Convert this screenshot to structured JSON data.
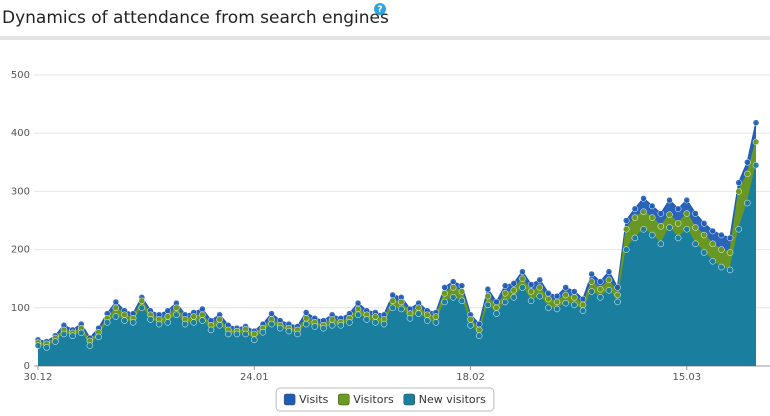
{
  "help_icon": "?",
  "chart_data": {
    "type": "area",
    "title": "Dynamics of attendance from search engines",
    "categories": [
      "30.12",
      null,
      null,
      null,
      null,
      null,
      null,
      null,
      null,
      null,
      null,
      null,
      null,
      null,
      null,
      null,
      null,
      null,
      null,
      null,
      null,
      null,
      null,
      null,
      null,
      "24.01",
      null,
      null,
      null,
      null,
      null,
      null,
      null,
      null,
      null,
      null,
      null,
      null,
      null,
      null,
      null,
      null,
      null,
      null,
      null,
      null,
      null,
      null,
      null,
      null,
      "18.02",
      null,
      null,
      null,
      null,
      null,
      null,
      null,
      null,
      null,
      null,
      null,
      null,
      null,
      null,
      null,
      null,
      null,
      null,
      null,
      null,
      null,
      null,
      null,
      null,
      "15.03",
      null,
      null,
      null,
      null,
      null,
      null,
      null,
      null
    ],
    "series": [
      {
        "name": "Visits",
        "color": "#1f5cb5",
        "values": [
          45,
          42,
          52,
          70,
          62,
          72,
          48,
          65,
          90,
          110,
          95,
          90,
          118,
          95,
          88,
          95,
          108,
          88,
          92,
          98,
          78,
          88,
          70,
          65,
          68,
          60,
          72,
          90,
          78,
          72,
          68,
          92,
          82,
          78,
          88,
          82,
          90,
          108,
          95,
          92,
          88,
          122,
          118,
          98,
          108,
          95,
          92,
          135,
          145,
          138,
          88,
          72,
          132,
          110,
          138,
          142,
          162,
          140,
          148,
          125,
          120,
          135,
          128,
          115,
          158,
          145,
          162,
          135,
          250,
          270,
          288,
          275,
          262,
          285,
          270,
          285,
          262,
          245,
          232,
          225,
          220,
          315,
          350,
          418
        ]
      },
      {
        "name": "Visitors",
        "color": "#6b9a1c",
        "values": [
          40,
          38,
          48,
          62,
          57,
          65,
          43,
          58,
          82,
          100,
          88,
          82,
          112,
          88,
          80,
          85,
          100,
          80,
          85,
          88,
          70,
          80,
          62,
          60,
          63,
          55,
          65,
          80,
          70,
          65,
          62,
          82,
          75,
          70,
          80,
          75,
          82,
          98,
          88,
          85,
          80,
          112,
          110,
          90,
          100,
          88,
          85,
          125,
          135,
          128,
          80,
          62,
          120,
          100,
          125,
          130,
          150,
          128,
          135,
          115,
          110,
          122,
          118,
          105,
          145,
          132,
          148,
          122,
          235,
          255,
          265,
          255,
          240,
          260,
          245,
          262,
          238,
          225,
          210,
          200,
          195,
          300,
          330,
          385
        ]
      },
      {
        "name": "New visitors",
        "color": "#1a7e9e",
        "values": [
          35,
          32,
          42,
          55,
          52,
          57,
          35,
          50,
          75,
          85,
          78,
          75,
          100,
          80,
          72,
          75,
          88,
          72,
          75,
          78,
          62,
          70,
          55,
          55,
          55,
          45,
          58,
          72,
          65,
          60,
          55,
          72,
          68,
          65,
          70,
          70,
          75,
          88,
          80,
          75,
          72,
          100,
          98,
          82,
          90,
          78,
          75,
          110,
          118,
          112,
          70,
          52,
          105,
          90,
          110,
          118,
          135,
          112,
          120,
          100,
          98,
          108,
          105,
          95,
          128,
          118,
          130,
          110,
          200,
          220,
          235,
          225,
          210,
          238,
          220,
          235,
          210,
          195,
          180,
          170,
          165,
          235,
          280,
          345
        ]
      }
    ],
    "ylim": [
      0,
      500
    ],
    "yticks": [
      0,
      100,
      200,
      300,
      400,
      500
    ],
    "grid": true,
    "legend": "bottom"
  }
}
